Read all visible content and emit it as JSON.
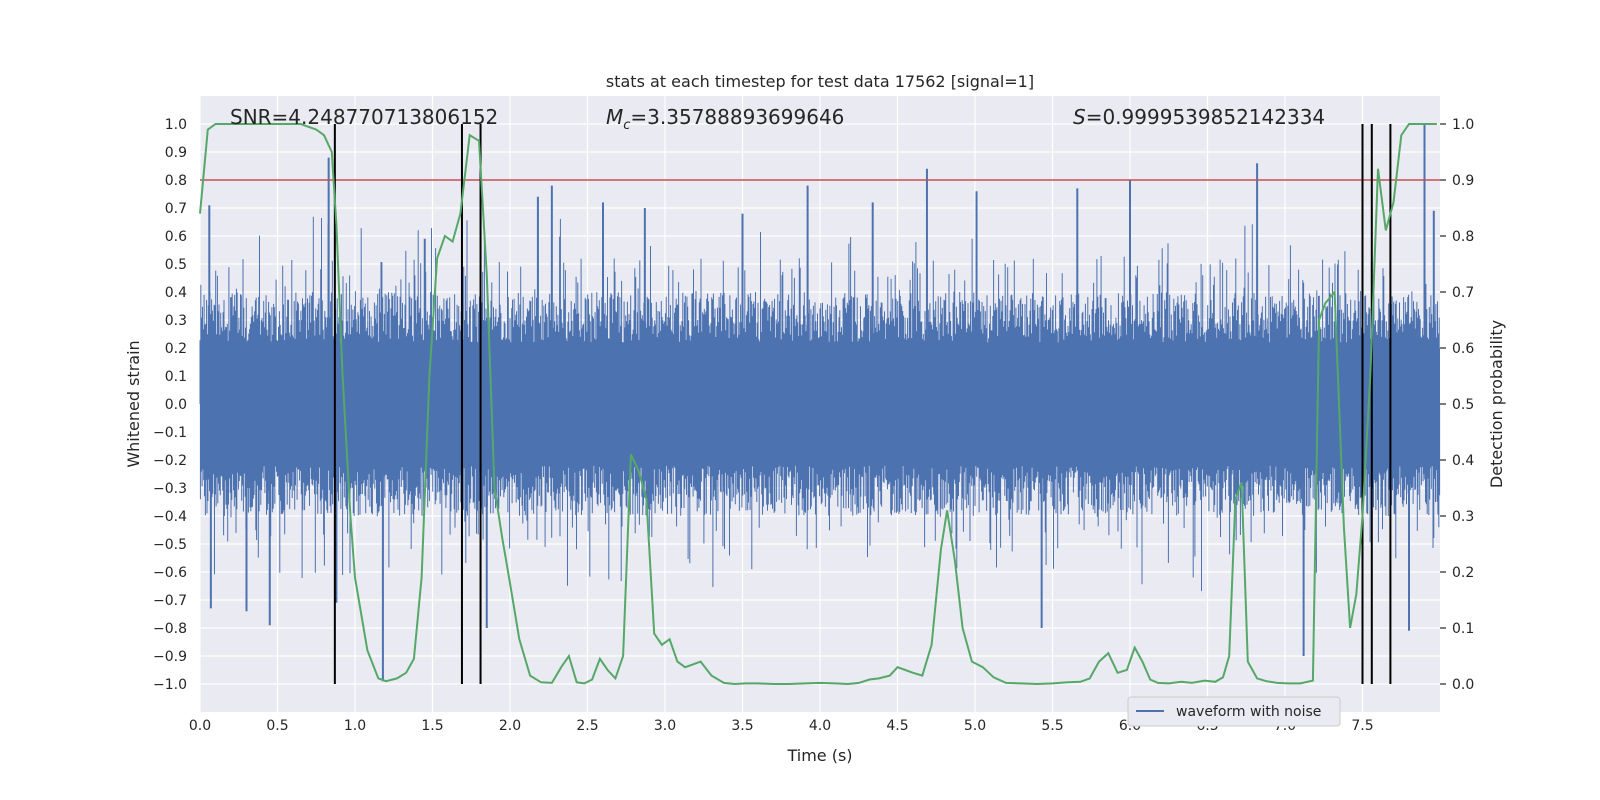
{
  "chart_data": {
    "type": "line",
    "title": "stats at each timestep for test data 17562 [signal=1]",
    "xlabel": "Time (s)",
    "ylabel_left": "Whitened strain",
    "ylabel_right": "Detection probability",
    "xlim": [
      0,
      8
    ],
    "ylim_left": [
      -1.1,
      1.1
    ],
    "ylim_right": [
      -0.05,
      1.05
    ],
    "x_ticks": [
      0.0,
      0.5,
      1.0,
      1.5,
      2.0,
      2.5,
      3.0,
      3.5,
      4.0,
      4.5,
      5.0,
      5.5,
      6.0,
      6.5,
      7.0,
      7.5
    ],
    "x_tick_labels": [
      "0.0",
      "0.5",
      "1.0",
      "1.5",
      "2.0",
      "2.5",
      "3.0",
      "3.5",
      "4.0",
      "4.5",
      "5.0",
      "5.5",
      "6.0",
      "6.5",
      "7.0",
      "7.5"
    ],
    "y_left_ticks": [
      1.0,
      0.9,
      0.8,
      0.7,
      0.6,
      0.5,
      0.4,
      0.3,
      0.2,
      0.1,
      0.0,
      -0.1,
      -0.2,
      -0.3,
      -0.4,
      -0.5,
      -0.6,
      -0.7,
      -0.8,
      -0.9,
      -1.0
    ],
    "y_left_tick_labels": [
      "1.0",
      "0.9",
      "0.8",
      "0.7",
      "0.6",
      "0.5",
      "0.4",
      "0.3",
      "0.2",
      "0.1",
      "0.0",
      "−0.1",
      "−0.2",
      "−0.3",
      "−0.4",
      "−0.5",
      "−0.6",
      "−0.7",
      "−0.8",
      "−0.9",
      "−1.0"
    ],
    "y_right_ticks": [
      1.0,
      0.9,
      0.8,
      0.7,
      0.6,
      0.5,
      0.4,
      0.3,
      0.2,
      0.1,
      0.0
    ],
    "y_right_tick_labels": [
      "1.0",
      "0.9",
      "0.8",
      "0.7",
      "0.6",
      "0.5",
      "0.4",
      "0.3",
      "0.2",
      "0.1",
      "0.0"
    ],
    "threshold": 0.9,
    "annotations": {
      "snr": "SNR=4.248770713806152",
      "mc_value": "=3.35788893699646",
      "s_value": "=0.9999539852142334"
    },
    "legend": {
      "label": "waveform with noise",
      "position": "lower-right"
    },
    "detection_markers": [
      0.87,
      1.69,
      1.81,
      7.5,
      7.56,
      7.68
    ],
    "series": [
      {
        "name": "waveform with noise",
        "kind": "strain",
        "color": "#4c72b0",
        "band": 0.2,
        "noise_amp": 0.4,
        "seed": 17562,
        "spikes": [
          {
            "t": 0.06,
            "v": 0.71
          },
          {
            "t": 0.07,
            "v": -0.73
          },
          {
            "t": 0.3,
            "v": -0.74
          },
          {
            "t": 0.45,
            "v": -0.79
          },
          {
            "t": 0.83,
            "v": 0.88
          },
          {
            "t": 0.88,
            "v": -0.71
          },
          {
            "t": 1.18,
            "v": -0.99
          },
          {
            "t": 1.45,
            "v": 0.59
          },
          {
            "t": 1.85,
            "v": -0.8
          },
          {
            "t": 2.18,
            "v": 0.74
          },
          {
            "t": 2.27,
            "v": 0.78
          },
          {
            "t": 2.6,
            "v": 0.72
          },
          {
            "t": 2.87,
            "v": 0.7
          },
          {
            "t": 3.5,
            "v": 0.68
          },
          {
            "t": 3.92,
            "v": 0.78
          },
          {
            "t": 4.34,
            "v": 0.72
          },
          {
            "t": 4.69,
            "v": 0.84
          },
          {
            "t": 5.01,
            "v": 0.76
          },
          {
            "t": 5.43,
            "v": -0.8
          },
          {
            "t": 5.66,
            "v": 0.77
          },
          {
            "t": 6.0,
            "v": 0.8
          },
          {
            "t": 6.82,
            "v": 0.86
          },
          {
            "t": 7.12,
            "v": -0.9
          },
          {
            "t": 7.8,
            "v": -0.81
          },
          {
            "t": 7.9,
            "v": 1.0
          },
          {
            "t": 7.96,
            "v": 0.69
          }
        ]
      },
      {
        "name": "detection probability",
        "kind": "probability",
        "color": "#55a868",
        "x": [
          0.0,
          0.05,
          0.1,
          0.2,
          0.3,
          0.4,
          0.5,
          0.6,
          0.65,
          0.7,
          0.75,
          0.8,
          0.85,
          0.88,
          0.92,
          0.97,
          1.0,
          1.08,
          1.15,
          1.2,
          1.27,
          1.33,
          1.38,
          1.43,
          1.48,
          1.53,
          1.58,
          1.63,
          1.68,
          1.74,
          1.8,
          1.85,
          1.9,
          1.95,
          2.0,
          2.06,
          2.13,
          2.2,
          2.27,
          2.33,
          2.38,
          2.43,
          2.48,
          2.53,
          2.58,
          2.63,
          2.68,
          2.73,
          2.78,
          2.83,
          2.88,
          2.93,
          2.98,
          3.03,
          3.08,
          3.13,
          3.18,
          3.23,
          3.3,
          3.38,
          3.45,
          3.52,
          3.6,
          3.7,
          3.8,
          3.9,
          4.0,
          4.1,
          4.18,
          4.25,
          4.32,
          4.38,
          4.45,
          4.5,
          4.55,
          4.6,
          4.66,
          4.72,
          4.78,
          4.82,
          4.87,
          4.92,
          4.98,
          5.05,
          5.12,
          5.2,
          5.3,
          5.4,
          5.5,
          5.6,
          5.68,
          5.74,
          5.8,
          5.86,
          5.92,
          5.98,
          6.03,
          6.08,
          6.13,
          6.18,
          6.25,
          6.33,
          6.4,
          6.48,
          6.55,
          6.6,
          6.64,
          6.68,
          6.72,
          6.76,
          6.82,
          6.88,
          6.95,
          7.02,
          7.1,
          7.18,
          7.22,
          7.26,
          7.32,
          7.38,
          7.42,
          7.46,
          7.5,
          7.55,
          7.6,
          7.65,
          7.7,
          7.75,
          7.8,
          7.86,
          7.93,
          7.98
        ],
        "y": [
          0.84,
          0.99,
          1.0,
          1.0,
          1.0,
          1.0,
          1.0,
          1.0,
          1.0,
          0.995,
          0.99,
          0.98,
          0.95,
          0.82,
          0.55,
          0.3,
          0.19,
          0.06,
          0.01,
          0.005,
          0.01,
          0.02,
          0.045,
          0.19,
          0.55,
          0.76,
          0.8,
          0.79,
          0.84,
          0.98,
          0.97,
          0.73,
          0.35,
          0.26,
          0.18,
          0.08,
          0.015,
          0.003,
          0.002,
          0.03,
          0.05,
          0.003,
          0.001,
          0.008,
          0.045,
          0.025,
          0.01,
          0.05,
          0.41,
          0.38,
          0.33,
          0.09,
          0.07,
          0.08,
          0.04,
          0.03,
          0.035,
          0.04,
          0.015,
          0.002,
          0.0,
          0.001,
          0.001,
          0.0,
          0.0,
          0.001,
          0.002,
          0.001,
          0.0,
          0.002,
          0.008,
          0.01,
          0.015,
          0.03,
          0.025,
          0.02,
          0.015,
          0.07,
          0.24,
          0.31,
          0.22,
          0.1,
          0.04,
          0.03,
          0.012,
          0.002,
          0.001,
          0.0,
          0.001,
          0.003,
          0.004,
          0.01,
          0.04,
          0.055,
          0.02,
          0.025,
          0.065,
          0.04,
          0.008,
          0.002,
          0.001,
          0.004,
          0.002,
          0.006,
          0.004,
          0.012,
          0.05,
          0.33,
          0.36,
          0.04,
          0.01,
          0.005,
          0.002,
          0.001,
          0.001,
          0.006,
          0.65,
          0.68,
          0.7,
          0.28,
          0.1,
          0.16,
          0.3,
          0.55,
          0.92,
          0.81,
          0.86,
          0.98,
          1.0,
          1.0,
          1.0,
          1.0
        ]
      }
    ]
  }
}
